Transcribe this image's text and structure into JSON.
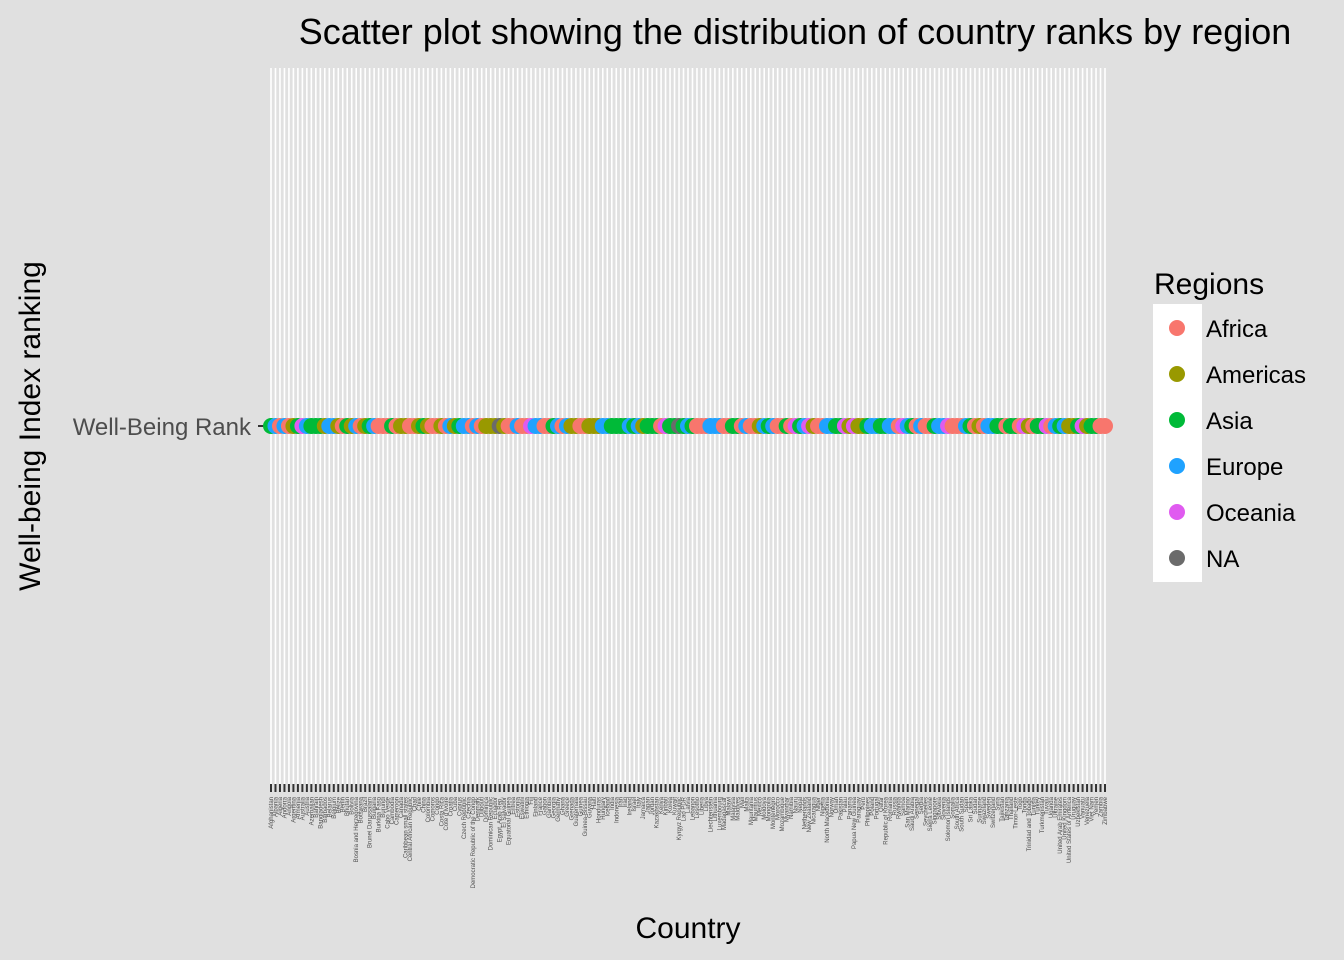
{
  "chart_data": {
    "type": "scatter",
    "title": "Scatter plot showing the distribution of country ranks by region",
    "xlabel": "Country",
    "ylabel": "Well-being Index ranking",
    "y_categories": [
      "Well-Being Rank"
    ],
    "legend": {
      "title": "Regions",
      "placement": "right",
      "entries": [
        {
          "name": "Africa",
          "color": "#F8766D"
        },
        {
          "name": "Americas",
          "color": "#999900"
        },
        {
          "name": "Asia",
          "color": "#00BA38"
        },
        {
          "name": "Europe",
          "color": "#1FA2FF"
        },
        {
          "name": "Oceania",
          "color": "#E05BF0"
        },
        {
          "name": "NA",
          "color": "#6B6B6B"
        }
      ]
    },
    "grid": true,
    "points": [
      {
        "country": "Afghanistan",
        "region": "Asia"
      },
      {
        "country": "Albania",
        "region": "Europe"
      },
      {
        "country": "Algeria",
        "region": "Africa"
      },
      {
        "country": "Andorra",
        "region": "Europe"
      },
      {
        "country": "Angola",
        "region": "Africa"
      },
      {
        "country": "Argentina",
        "region": "Americas"
      },
      {
        "country": "Armenia",
        "region": "Asia"
      },
      {
        "country": "Australia",
        "region": "Oceania"
      },
      {
        "country": "Austria",
        "region": "Europe"
      },
      {
        "country": "Azerbaijan",
        "region": "Asia"
      },
      {
        "country": "Bahrain",
        "region": "Asia"
      },
      {
        "country": "Bangladesh",
        "region": "Asia"
      },
      {
        "country": "Barbados",
        "region": "Americas"
      },
      {
        "country": "Belarus",
        "region": "Europe"
      },
      {
        "country": "Belgium",
        "region": "Europe"
      },
      {
        "country": "Belize",
        "region": "Americas"
      },
      {
        "country": "Benin",
        "region": "Africa"
      },
      {
        "country": "Bhutan",
        "region": "Asia"
      },
      {
        "country": "Bolivia",
        "region": "Americas"
      },
      {
        "country": "Bosnia and Herzegovina",
        "region": "Europe"
      },
      {
        "country": "Botswana",
        "region": "Africa"
      },
      {
        "country": "Brazil",
        "region": "Americas"
      },
      {
        "country": "Brunei Darussalam",
        "region": "Asia"
      },
      {
        "country": "Bulgaria",
        "region": "Europe"
      },
      {
        "country": "Burkina Faso",
        "region": "Africa"
      },
      {
        "country": "Burundi",
        "region": "Africa"
      },
      {
        "country": "Cabo Verde",
        "region": "Africa"
      },
      {
        "country": "Cambodia",
        "region": "Asia"
      },
      {
        "country": "Cameroon",
        "region": "Africa"
      },
      {
        "country": "Canada",
        "region": "Americas"
      },
      {
        "country": "Caribbean small states",
        "region": "Americas"
      },
      {
        "country": "Central African Republic",
        "region": "Africa"
      },
      {
        "country": "Chad",
        "region": "Africa"
      },
      {
        "country": "Chile",
        "region": "Americas"
      },
      {
        "country": "China",
        "region": "Asia"
      },
      {
        "country": "Colombia",
        "region": "Americas"
      },
      {
        "country": "Comoros",
        "region": "Africa"
      },
      {
        "country": "Congo",
        "region": "Africa"
      },
      {
        "country": "Costa Rica",
        "region": "Americas"
      },
      {
        "country": "Cote d'Ivoire",
        "region": "Africa"
      },
      {
        "country": "Croatia",
        "region": "Europe"
      },
      {
        "country": "Cuba",
        "region": "Americas"
      },
      {
        "country": "Cyprus",
        "region": "Asia"
      },
      {
        "country": "Czech Republic",
        "region": "Europe"
      },
      {
        "country": "Czechia",
        "region": "Europe"
      },
      {
        "country": "Democratic Republic of the Congo",
        "region": "Africa"
      },
      {
        "country": "Denmark",
        "region": "Europe"
      },
      {
        "country": "Djibouti",
        "region": "Africa"
      },
      {
        "country": "Dominica",
        "region": "Americas"
      },
      {
        "country": "Dominican Republic",
        "region": "Americas"
      },
      {
        "country": "Ecuador",
        "region": "Americas"
      },
      {
        "country": "Egypt, Arab Rep.",
        "region": "NA"
      },
      {
        "country": "El Salvador",
        "region": "Americas"
      },
      {
        "country": "Equatorial Guinea",
        "region": "Africa"
      },
      {
        "country": "Eritrea",
        "region": "Africa"
      },
      {
        "country": "Estonia",
        "region": "Europe"
      },
      {
        "country": "Eswatini",
        "region": "Africa"
      },
      {
        "country": "Ethiopia",
        "region": "Africa"
      },
      {
        "country": "Fiji",
        "region": "Oceania"
      },
      {
        "country": "Finland",
        "region": "Europe"
      },
      {
        "country": "France",
        "region": "Europe"
      },
      {
        "country": "Gabon",
        "region": "Africa"
      },
      {
        "country": "Gambia",
        "region": "Africa"
      },
      {
        "country": "Georgia",
        "region": "Asia"
      },
      {
        "country": "Germany",
        "region": "Europe"
      },
      {
        "country": "Ghana",
        "region": "Africa"
      },
      {
        "country": "Greece",
        "region": "Europe"
      },
      {
        "country": "Grenada",
        "region": "Americas"
      },
      {
        "country": "Guatemala",
        "region": "Americas"
      },
      {
        "country": "Guinea",
        "region": "Africa"
      },
      {
        "country": "Guinea-Bissau",
        "region": "Africa"
      },
      {
        "country": "Guyana",
        "region": "Americas"
      },
      {
        "country": "Haiti",
        "region": "Americas"
      },
      {
        "country": "Honduras",
        "region": "Americas"
      },
      {
        "country": "Hungary",
        "region": "Europe"
      },
      {
        "country": "Iceland",
        "region": "Europe"
      },
      {
        "country": "India",
        "region": "Asia"
      },
      {
        "country": "Indonesia",
        "region": "Asia"
      },
      {
        "country": "Iran",
        "region": "Asia"
      },
      {
        "country": "Iraq",
        "region": "Asia"
      },
      {
        "country": "Ireland",
        "region": "Europe"
      },
      {
        "country": "Israel",
        "region": "Asia"
      },
      {
        "country": "Italy",
        "region": "Europe"
      },
      {
        "country": "Jamaica",
        "region": "Americas"
      },
      {
        "country": "Japan",
        "region": "Asia"
      },
      {
        "country": "Jordan",
        "region": "Asia"
      },
      {
        "country": "Kazakhstan",
        "region": "Asia"
      },
      {
        "country": "Kenya",
        "region": "Africa"
      },
      {
        "country": "Kiribati",
        "region": "Oceania"
      },
      {
        "country": "Korea",
        "region": "Asia"
      },
      {
        "country": "Kuwait",
        "region": "Asia"
      },
      {
        "country": "Kyrgyz Republic",
        "region": "NA"
      },
      {
        "country": "Lao PDR",
        "region": "Asia"
      },
      {
        "country": "Latvia",
        "region": "Europe"
      },
      {
        "country": "Lebanon",
        "region": "Asia"
      },
      {
        "country": "Lesotho",
        "region": "Africa"
      },
      {
        "country": "Liberia",
        "region": "Africa"
      },
      {
        "country": "Libya",
        "region": "Africa"
      },
      {
        "country": "Liechtenstein",
        "region": "Europe"
      },
      {
        "country": "Lithuania",
        "region": "Europe"
      },
      {
        "country": "Luxembourg",
        "region": "Europe"
      },
      {
        "country": "Madagascar",
        "region": "Africa"
      },
      {
        "country": "Malawi",
        "region": "Africa"
      },
      {
        "country": "Malaysia",
        "region": "Asia"
      },
      {
        "country": "Maldives",
        "region": "Asia"
      },
      {
        "country": "Mali",
        "region": "Africa"
      },
      {
        "country": "Malta",
        "region": "Europe"
      },
      {
        "country": "Mauritania",
        "region": "Africa"
      },
      {
        "country": "Mauritius",
        "region": "Africa"
      },
      {
        "country": "Mexico",
        "region": "Americas"
      },
      {
        "country": "Moldova",
        "region": "Europe"
      },
      {
        "country": "Mongolia",
        "region": "Asia"
      },
      {
        "country": "Montenegro",
        "region": "Europe"
      },
      {
        "country": "Morocco",
        "region": "Africa"
      },
      {
        "country": "Mozambique",
        "region": "Africa"
      },
      {
        "country": "Myanmar",
        "region": "Asia"
      },
      {
        "country": "Namibia",
        "region": "Africa"
      },
      {
        "country": "Nauru",
        "region": "Oceania"
      },
      {
        "country": "Nepal",
        "region": "Asia"
      },
      {
        "country": "Netherlands",
        "region": "Europe"
      },
      {
        "country": "New Zealand",
        "region": "Oceania"
      },
      {
        "country": "Nicaragua",
        "region": "Americas"
      },
      {
        "country": "Niger",
        "region": "Africa"
      },
      {
        "country": "Nigeria",
        "region": "Africa"
      },
      {
        "country": "North Macedonia",
        "region": "Europe"
      },
      {
        "country": "Norway",
        "region": "Europe"
      },
      {
        "country": "Oman",
        "region": "Asia"
      },
      {
        "country": "Pakistan",
        "region": "Asia"
      },
      {
        "country": "Palau",
        "region": "Oceania"
      },
      {
        "country": "Panama",
        "region": "Americas"
      },
      {
        "country": "Papua New Guinea",
        "region": "Oceania"
      },
      {
        "country": "Paraguay",
        "region": "Americas"
      },
      {
        "country": "Peru",
        "region": "Americas"
      },
      {
        "country": "Philippines",
        "region": "Asia"
      },
      {
        "country": "Poland",
        "region": "Europe"
      },
      {
        "country": "Portugal",
        "region": "Europe"
      },
      {
        "country": "Qatar",
        "region": "Asia"
      },
      {
        "country": "Republic of Korea",
        "region": "Asia"
      },
      {
        "country": "Romania",
        "region": "Europe"
      },
      {
        "country": "Russia",
        "region": "Europe"
      },
      {
        "country": "Rwanda",
        "region": "Africa"
      },
      {
        "country": "Samoa",
        "region": "Oceania"
      },
      {
        "country": "San Marino",
        "region": "Europe"
      },
      {
        "country": "Saudi Arabia",
        "region": "Asia"
      },
      {
        "country": "Senegal",
        "region": "Africa"
      },
      {
        "country": "Serbia",
        "region": "Europe"
      },
      {
        "country": "Seychelles",
        "region": "Africa"
      },
      {
        "country": "Sierra Leone",
        "region": "Africa"
      },
      {
        "country": "Singapore",
        "region": "Asia"
      },
      {
        "country": "Slovakia",
        "region": "Europe"
      },
      {
        "country": "Slovenia",
        "region": "Europe"
      },
      {
        "country": "Solomon Islands",
        "region": "Oceania"
      },
      {
        "country": "Somalia",
        "region": "Africa"
      },
      {
        "country": "South Africa",
        "region": "Africa"
      },
      {
        "country": "South Sudan",
        "region": "Africa"
      },
      {
        "country": "Spain",
        "region": "Europe"
      },
      {
        "country": "Sri Lanka",
        "region": "Asia"
      },
      {
        "country": "Sudan",
        "region": "Africa"
      },
      {
        "country": "Suriname",
        "region": "Americas"
      },
      {
        "country": "Swaziland",
        "region": "Africa"
      },
      {
        "country": "Sweden",
        "region": "Europe"
      },
      {
        "country": "Switzerland",
        "region": "Europe"
      },
      {
        "country": "Syria",
        "region": "Asia"
      },
      {
        "country": "Tajikistan",
        "region": "Asia"
      },
      {
        "country": "Tanzania",
        "region": "Africa"
      },
      {
        "country": "Thailand",
        "region": "Asia"
      },
      {
        "country": "Timor-Leste",
        "region": "Asia"
      },
      {
        "country": "Togo",
        "region": "Africa"
      },
      {
        "country": "Tonga",
        "region": "Oceania"
      },
      {
        "country": "Trinidad and Tobago",
        "region": "Americas"
      },
      {
        "country": "Tunisia",
        "region": "Africa"
      },
      {
        "country": "Turkey",
        "region": "Asia"
      },
      {
        "country": "Turkmenistan",
        "region": "Asia"
      },
      {
        "country": "Tuvalu",
        "region": "Oceania"
      },
      {
        "country": "Uganda",
        "region": "Africa"
      },
      {
        "country": "Ukraine",
        "region": "Europe"
      },
      {
        "country": "United Arab Emirates",
        "region": "Asia"
      },
      {
        "country": "United Kingdom",
        "region": "Europe"
      },
      {
        "country": "United States of America",
        "region": "Americas"
      },
      {
        "country": "Uruguay",
        "region": "Americas"
      },
      {
        "country": "Uzbekistan",
        "region": "Asia"
      },
      {
        "country": "Vanuatu",
        "region": "Oceania"
      },
      {
        "country": "Venezuela",
        "region": "Americas"
      },
      {
        "country": "Viet Nam",
        "region": "Asia"
      },
      {
        "country": "Yemen",
        "region": "Asia"
      },
      {
        "country": "Zambia",
        "region": "Africa"
      },
      {
        "country": "Zimbabwe",
        "region": "Africa"
      }
    ]
  }
}
